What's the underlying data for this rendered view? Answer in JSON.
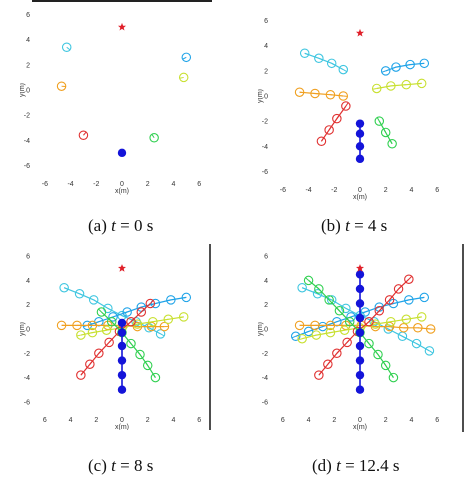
{
  "figure": {
    "panels": [
      {
        "caption_label": "(a)",
        "caption_time": "0 s"
      },
      {
        "caption_label": "(b)",
        "caption_time": "4 s"
      },
      {
        "caption_label": "(c)",
        "caption_time": "8 s"
      },
      {
        "caption_label": "(d)",
        "caption_time": "12.4 s"
      }
    ],
    "time_symbol": "t",
    "equals_sign": "="
  },
  "colors": {
    "robot": "#1414d9",
    "goal": "#e0202a",
    "agent_colors": [
      "#3fc6e0",
      "#1fa3e8",
      "#f0a020",
      "#c8e030",
      "#e03030",
      "#30d050"
    ]
  },
  "chart_data": [
    {
      "type": "scatter",
      "title": "",
      "xlabel": "x(m)",
      "ylabel": "y(m)",
      "xlim": [
        -7,
        7
      ],
      "ylim": [
        -7,
        7
      ],
      "x_ticks": [
        "-6",
        "-4",
        "-2",
        "0",
        "2",
        "4",
        "6"
      ],
      "y_ticks": [
        "6",
        "4",
        "2",
        "0",
        "-2",
        "-4",
        "-6"
      ],
      "goal": {
        "x": 0,
        "y": 5
      },
      "robot_path": [
        {
          "x": 0,
          "y": -5
        }
      ],
      "agents": [
        {
          "path": [
            {
              "x": -4.3,
              "y": 3.4
            }
          ]
        },
        {
          "path": [
            {
              "x": 5.0,
              "y": 2.6
            }
          ]
        },
        {
          "path": [
            {
              "x": -4.7,
              "y": 0.3
            }
          ]
        },
        {
          "path": [
            {
              "x": 4.8,
              "y": 1.0
            }
          ]
        },
        {
          "path": [
            {
              "x": -3.0,
              "y": -3.6
            }
          ]
        },
        {
          "path": [
            {
              "x": 2.5,
              "y": -3.8
            }
          ]
        }
      ]
    },
    {
      "type": "scatter",
      "title": "",
      "xlabel": "x(m)",
      "ylabel": "y(m)",
      "xlim": [
        -7,
        7
      ],
      "ylim": [
        -7,
        7
      ],
      "x_ticks": [
        "-6",
        "-4",
        "-2",
        "0",
        "2",
        "4",
        "6"
      ],
      "y_ticks": [
        "6",
        "4",
        "2",
        "0",
        "-2",
        "-4",
        "-6"
      ],
      "goal": {
        "x": 0,
        "y": 5
      },
      "robot_path": [
        {
          "x": 0,
          "y": -5
        },
        {
          "x": 0,
          "y": -4
        },
        {
          "x": 0,
          "y": -3
        },
        {
          "x": 0,
          "y": -2.2
        }
      ],
      "agents": [
        {
          "path": [
            {
              "x": -4.3,
              "y": 3.4
            },
            {
              "x": -3.2,
              "y": 3.0
            },
            {
              "x": -2.2,
              "y": 2.6
            },
            {
              "x": -1.3,
              "y": 2.1
            }
          ]
        },
        {
          "path": [
            {
              "x": 5.0,
              "y": 2.6
            },
            {
              "x": 3.9,
              "y": 2.5
            },
            {
              "x": 2.8,
              "y": 2.3
            },
            {
              "x": 2.0,
              "y": 2.0
            }
          ]
        },
        {
          "path": [
            {
              "x": -4.7,
              "y": 0.3
            },
            {
              "x": -3.5,
              "y": 0.2
            },
            {
              "x": -2.3,
              "y": 0.1
            },
            {
              "x": -1.3,
              "y": 0.0
            }
          ]
        },
        {
          "path": [
            {
              "x": 4.8,
              "y": 1.0
            },
            {
              "x": 3.6,
              "y": 0.9
            },
            {
              "x": 2.4,
              "y": 0.8
            },
            {
              "x": 1.3,
              "y": 0.6
            }
          ]
        },
        {
          "path": [
            {
              "x": -3.0,
              "y": -3.6
            },
            {
              "x": -2.4,
              "y": -2.7
            },
            {
              "x": -1.8,
              "y": -1.8
            },
            {
              "x": -1.1,
              "y": -0.8
            }
          ]
        },
        {
          "path": [
            {
              "x": 2.5,
              "y": -3.8
            },
            {
              "x": 2.0,
              "y": -2.9
            },
            {
              "x": 1.5,
              "y": -2.0
            }
          ]
        }
      ]
    },
    {
      "type": "scatter",
      "title": "",
      "xlabel": "x(m)",
      "ylabel": "y(m)",
      "xlim": [
        -7,
        7
      ],
      "ylim": [
        -7,
        7
      ],
      "x_ticks": [
        "6",
        "4",
        "2",
        "0",
        "2",
        "4",
        "6"
      ],
      "y_ticks": [
        "6",
        "4",
        "2",
        "0",
        "-2",
        "-4",
        "-6"
      ],
      "goal": {
        "x": 0,
        "y": 5
      },
      "robot_path": [
        {
          "x": 0,
          "y": -5
        },
        {
          "x": 0,
          "y": -3.8
        },
        {
          "x": 0,
          "y": -2.6
        },
        {
          "x": 0,
          "y": -1.4
        },
        {
          "x": 0,
          "y": -0.3
        },
        {
          "x": 0,
          "y": 0.5
        }
      ],
      "agents": [
        {
          "path": [
            {
              "x": -4.5,
              "y": 3.4
            },
            {
              "x": -3.3,
              "y": 2.9
            },
            {
              "x": -2.2,
              "y": 2.4
            },
            {
              "x": -1.1,
              "y": 1.7
            },
            {
              "x": 0.0,
              "y": 1.1
            },
            {
              "x": 1.1,
              "y": 0.6
            },
            {
              "x": 2.1,
              "y": 0.1
            },
            {
              "x": 3.0,
              "y": -0.4
            }
          ]
        },
        {
          "path": [
            {
              "x": 5.0,
              "y": 2.6
            },
            {
              "x": 3.8,
              "y": 2.4
            },
            {
              "x": 2.6,
              "y": 2.1
            },
            {
              "x": 1.5,
              "y": 1.8
            },
            {
              "x": 0.4,
              "y": 1.4
            },
            {
              "x": -0.7,
              "y": 1.0
            },
            {
              "x": -1.8,
              "y": 0.6
            },
            {
              "x": -2.7,
              "y": 0.3
            }
          ]
        },
        {
          "path": [
            {
              "x": -4.7,
              "y": 0.3
            },
            {
              "x": -3.5,
              "y": 0.3
            },
            {
              "x": -2.3,
              "y": 0.3
            },
            {
              "x": -1.1,
              "y": 0.3
            },
            {
              "x": 0.1,
              "y": 0.3
            },
            {
              "x": 1.2,
              "y": 0.2
            },
            {
              "x": 2.3,
              "y": 0.2
            },
            {
              "x": 3.3,
              "y": 0.2
            }
          ]
        },
        {
          "path": [
            {
              "x": 4.8,
              "y": 1.0
            },
            {
              "x": 3.6,
              "y": 0.8
            },
            {
              "x": 2.4,
              "y": 0.6
            },
            {
              "x": 1.2,
              "y": 0.4
            },
            {
              "x": 0.0,
              "y": 0.1
            },
            {
              "x": -1.2,
              "y": -0.1
            },
            {
              "x": -2.3,
              "y": -0.3
            },
            {
              "x": -3.2,
              "y": -0.5
            }
          ]
        },
        {
          "path": [
            {
              "x": -3.2,
              "y": -3.8
            },
            {
              "x": -2.5,
              "y": -2.9
            },
            {
              "x": -1.8,
              "y": -2.0
            },
            {
              "x": -1.0,
              "y": -1.1
            },
            {
              "x": -0.2,
              "y": -0.2
            },
            {
              "x": 0.7,
              "y": 0.6
            },
            {
              "x": 1.5,
              "y": 1.4
            },
            {
              "x": 2.2,
              "y": 2.1
            }
          ]
        },
        {
          "path": [
            {
              "x": 2.6,
              "y": -4.0
            },
            {
              "x": 2.0,
              "y": -3.0
            },
            {
              "x": 1.4,
              "y": -2.1
            },
            {
              "x": 0.7,
              "y": -1.2
            },
            {
              "x": 0.0,
              "y": -0.3
            },
            {
              "x": -0.8,
              "y": 0.6
            },
            {
              "x": -1.6,
              "y": 1.4
            }
          ]
        }
      ]
    },
    {
      "type": "scatter",
      "title": "",
      "xlabel": "x(m)",
      "ylabel": "y(m)",
      "xlim": [
        -7,
        7
      ],
      "ylim": [
        -7,
        7
      ],
      "x_ticks": [
        "6",
        "4",
        "2",
        "0",
        "2",
        "4",
        "6"
      ],
      "y_ticks": [
        "6",
        "4",
        "2",
        "0",
        "-2",
        "-4",
        "-6"
      ],
      "goal": {
        "x": 0,
        "y": 5
      },
      "robot_path": [
        {
          "x": 0,
          "y": -5
        },
        {
          "x": 0,
          "y": -3.8
        },
        {
          "x": 0,
          "y": -2.6
        },
        {
          "x": 0,
          "y": -1.4
        },
        {
          "x": 0,
          "y": -0.3
        },
        {
          "x": 0,
          "y": 0.9
        },
        {
          "x": 0,
          "y": 2.1
        },
        {
          "x": 0,
          "y": 3.3
        },
        {
          "x": 0,
          "y": 4.5
        }
      ],
      "agents": [
        {
          "path": [
            {
              "x": -4.5,
              "y": 3.4
            },
            {
              "x": -3.3,
              "y": 2.9
            },
            {
              "x": -2.2,
              "y": 2.4
            },
            {
              "x": -1.1,
              "y": 1.7
            },
            {
              "x": 0.0,
              "y": 1.1
            },
            {
              "x": 1.1,
              "y": 0.6
            },
            {
              "x": 2.2,
              "y": 0.0
            },
            {
              "x": 3.3,
              "y": -0.6
            },
            {
              "x": 4.4,
              "y": -1.2
            },
            {
              "x": 5.4,
              "y": -1.8
            }
          ]
        },
        {
          "path": [
            {
              "x": 5.0,
              "y": 2.6
            },
            {
              "x": 3.8,
              "y": 2.4
            },
            {
              "x": 2.6,
              "y": 2.1
            },
            {
              "x": 1.5,
              "y": 1.8
            },
            {
              "x": 0.4,
              "y": 1.4
            },
            {
              "x": -0.7,
              "y": 1.0
            },
            {
              "x": -1.8,
              "y": 0.6
            },
            {
              "x": -2.9,
              "y": 0.2
            },
            {
              "x": -4.0,
              "y": -0.2
            },
            {
              "x": -5.0,
              "y": -0.6
            }
          ]
        },
        {
          "path": [
            {
              "x": -4.7,
              "y": 0.3
            },
            {
              "x": -3.5,
              "y": 0.3
            },
            {
              "x": -2.3,
              "y": 0.3
            },
            {
              "x": -1.1,
              "y": 0.3
            },
            {
              "x": 0.1,
              "y": 0.3
            },
            {
              "x": 1.2,
              "y": 0.2
            },
            {
              "x": 2.3,
              "y": 0.2
            },
            {
              "x": 3.4,
              "y": 0.1
            },
            {
              "x": 4.5,
              "y": 0.1
            },
            {
              "x": 5.5,
              "y": 0.0
            }
          ]
        },
        {
          "path": [
            {
              "x": 4.8,
              "y": 1.0
            },
            {
              "x": 3.6,
              "y": 0.8
            },
            {
              "x": 2.4,
              "y": 0.6
            },
            {
              "x": 1.2,
              "y": 0.4
            },
            {
              "x": 0.0,
              "y": 0.1
            },
            {
              "x": -1.2,
              "y": -0.1
            },
            {
              "x": -2.3,
              "y": -0.3
            },
            {
              "x": -3.4,
              "y": -0.5
            },
            {
              "x": -4.5,
              "y": -0.8
            }
          ]
        },
        {
          "path": [
            {
              "x": -3.2,
              "y": -3.8
            },
            {
              "x": -2.5,
              "y": -2.9
            },
            {
              "x": -1.8,
              "y": -2.0
            },
            {
              "x": -1.0,
              "y": -1.1
            },
            {
              "x": -0.2,
              "y": -0.2
            },
            {
              "x": 0.7,
              "y": 0.6
            },
            {
              "x": 1.5,
              "y": 1.5
            },
            {
              "x": 2.3,
              "y": 2.4
            },
            {
              "x": 3.0,
              "y": 3.3
            },
            {
              "x": 3.8,
              "y": 4.1
            }
          ]
        },
        {
          "path": [
            {
              "x": 2.6,
              "y": -4.0
            },
            {
              "x": 2.0,
              "y": -3.0
            },
            {
              "x": 1.4,
              "y": -2.1
            },
            {
              "x": 0.7,
              "y": -1.2
            },
            {
              "x": 0.0,
              "y": -0.3
            },
            {
              "x": -0.8,
              "y": 0.6
            },
            {
              "x": -1.6,
              "y": 1.5
            },
            {
              "x": -2.4,
              "y": 2.4
            },
            {
              "x": -3.2,
              "y": 3.3
            },
            {
              "x": -4.0,
              "y": 4.0
            }
          ]
        }
      ]
    }
  ]
}
